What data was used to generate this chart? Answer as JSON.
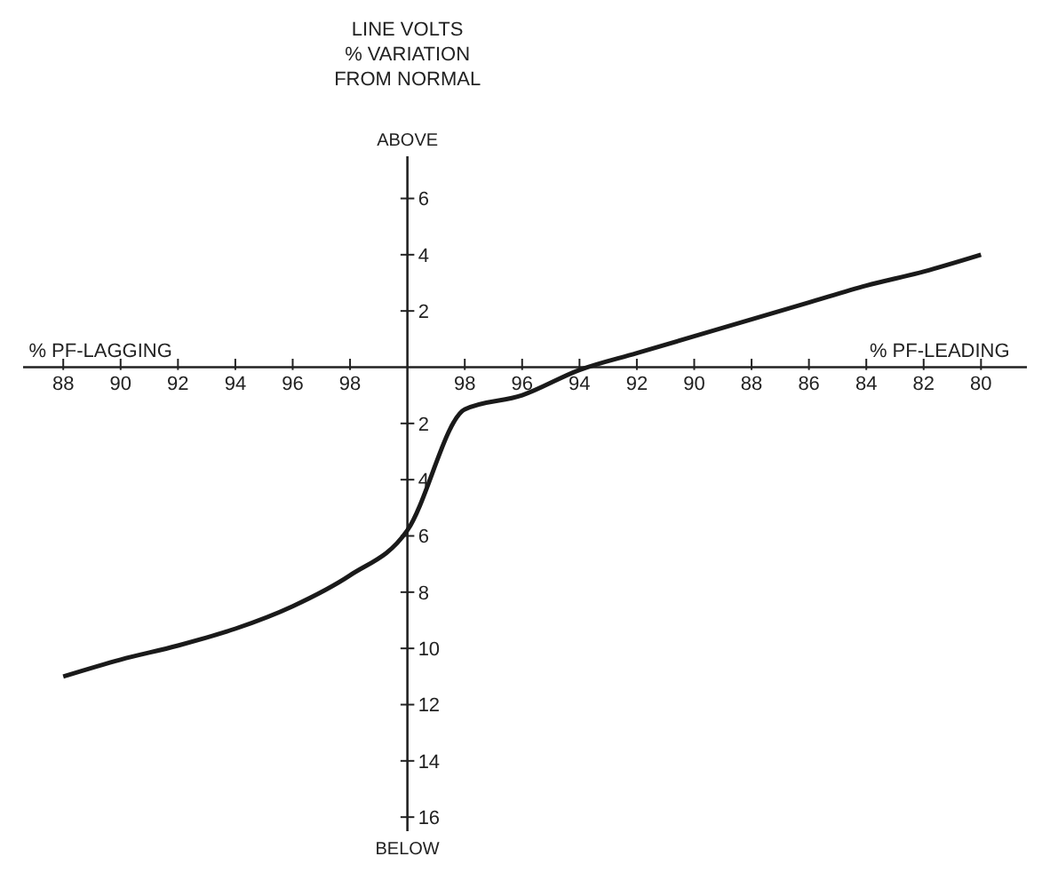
{
  "chart_data": {
    "type": "line",
    "ylabel": "LINE VOLTS\n% VARIATION\nFROM NORMAL",
    "annotations": [
      "ABOVE",
      "BELOW",
      "% PF-LAGGING",
      "% PF-LEADING"
    ],
    "categories": [
      "88",
      "90",
      "92",
      "94",
      "96",
      "98",
      null,
      "98",
      "96",
      "94",
      "92",
      "90",
      "88",
      "86",
      "84",
      "82",
      "80"
    ],
    "series": [
      {
        "color": "#1a1a1a",
        "values": [
          -11.0,
          -10.4,
          -9.9,
          -9.3,
          -8.5,
          -7.4,
          -5.8,
          -1.5,
          -1.0,
          -0.1,
          0.5,
          1.1,
          1.7,
          2.3,
          2.9,
          3.4,
          4.0
        ]
      }
    ],
    "ylim": [
      -16.5,
      7.5
    ],
    "yticks": [
      6,
      4,
      2,
      {
        "value": -2,
        "label": "2"
      },
      {
        "value": -4,
        "label": "4"
      },
      {
        "value": -6,
        "label": "6"
      },
      {
        "value": -8,
        "label": "8"
      },
      {
        "value": -10,
        "label": "10"
      },
      {
        "value": -12,
        "label": "12"
      },
      {
        "value": -14,
        "label": "14"
      },
      {
        "value": -16,
        "label": "16"
      }
    ]
  }
}
